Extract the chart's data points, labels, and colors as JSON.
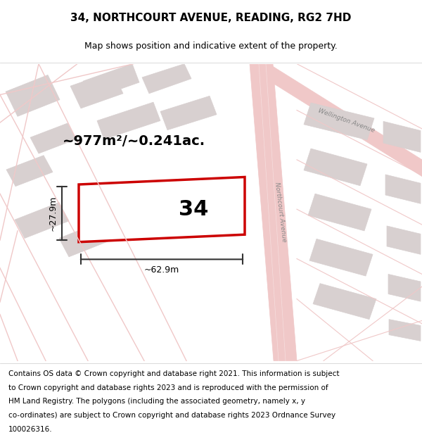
{
  "title": "34, NORTHCOURT AVENUE, READING, RG2 7HD",
  "subtitle": "Map shows position and indicative extent of the property.",
  "footer_lines": [
    "Contains OS data © Crown copyright and database right 2021. This information is subject",
    "to Crown copyright and database rights 2023 and is reproduced with the permission of",
    "HM Land Registry. The polygons (including the associated geometry, namely x, y",
    "co-ordinates) are subject to Crown copyright and database rights 2023 Ordnance Survey",
    "100026316."
  ],
  "area_label": "~977m²/~0.241ac.",
  "width_label": "~62.9m",
  "height_label": "~27.9m",
  "plot_number": "34",
  "bg_color": "#ffffff",
  "map_bg": "#f5f0f0",
  "road_color": "#f0c8c8",
  "building_color": "#d8d0d0",
  "plot_outline_color": "#cc0000",
  "dim_color": "#333333",
  "title_fontsize": 11,
  "subtitle_fontsize": 9,
  "footer_fontsize": 7.5,
  "road_label_color": "#888888"
}
